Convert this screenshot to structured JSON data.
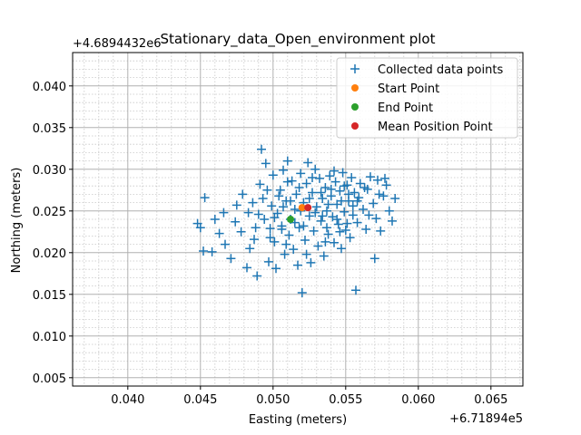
{
  "chart_data": {
    "type": "scatter",
    "title": "Stationary_data_Open_environment plot",
    "xlabel": "Easting (meters)",
    "ylabel": "Northing (meters)",
    "x_offset_label": "+6.71894e5",
    "y_offset_label": "+4.6894432e6",
    "xlim": [
      0.0362,
      0.0672
    ],
    "ylim": [
      0.004,
      0.044
    ],
    "x_ticks": [
      0.04,
      0.045,
      0.05,
      0.055,
      0.06,
      0.065
    ],
    "x_tick_labels": [
      "0.040",
      "0.045",
      "0.050",
      "0.055",
      "0.060",
      "0.065"
    ],
    "y_ticks": [
      0.005,
      0.01,
      0.015,
      0.02,
      0.025,
      0.03,
      0.035,
      0.04
    ],
    "y_tick_labels": [
      "0.005",
      "0.010",
      "0.015",
      "0.020",
      "0.025",
      "0.030",
      "0.035",
      "0.040"
    ],
    "grid": "major-and-minor",
    "legend_position": "top-right",
    "colors": {
      "collected": "#1f77b4",
      "start": "#ff7f0e",
      "end": "#2ca02c",
      "mean": "#d62728",
      "grid_major": "#b0b0b0",
      "grid_minor": "#c8c8c8"
    },
    "series": [
      {
        "name": "Collected data points",
        "marker": "plus",
        "points": [
          [
            0.0453,
            0.0266
          ],
          [
            0.0448,
            0.0235
          ],
          [
            0.045,
            0.023
          ],
          [
            0.0452,
            0.0202
          ],
          [
            0.046,
            0.024
          ],
          [
            0.0463,
            0.0223
          ],
          [
            0.0458,
            0.0201
          ],
          [
            0.0466,
            0.0248
          ],
          [
            0.0467,
            0.021
          ],
          [
            0.0471,
            0.0193
          ],
          [
            0.0474,
            0.0237
          ],
          [
            0.0475,
            0.0257
          ],
          [
            0.0479,
            0.027
          ],
          [
            0.0482,
            0.0182
          ],
          [
            0.0484,
            0.0205
          ],
          [
            0.0487,
            0.0216
          ],
          [
            0.0489,
            0.0172
          ],
          [
            0.049,
            0.0246
          ],
          [
            0.0491,
            0.0282
          ],
          [
            0.0492,
            0.0324
          ],
          [
            0.0493,
            0.0265
          ],
          [
            0.0495,
            0.0307
          ],
          [
            0.0497,
            0.0189
          ],
          [
            0.0498,
            0.0229
          ],
          [
            0.0499,
            0.0256
          ],
          [
            0.05,
            0.0293
          ],
          [
            0.0501,
            0.0213
          ],
          [
            0.0502,
            0.0181
          ],
          [
            0.0503,
            0.0247
          ],
          [
            0.0505,
            0.0275
          ],
          [
            0.0506,
            0.0232
          ],
          [
            0.0507,
            0.0299
          ],
          [
            0.0508,
            0.0198
          ],
          [
            0.0509,
            0.0262
          ],
          [
            0.051,
            0.031
          ],
          [
            0.0511,
            0.0221
          ],
          [
            0.0512,
            0.024
          ],
          [
            0.0513,
            0.0286
          ],
          [
            0.0514,
            0.0204
          ],
          [
            0.0515,
            0.0252
          ],
          [
            0.0516,
            0.027
          ],
          [
            0.0517,
            0.0185
          ],
          [
            0.0518,
            0.023
          ],
          [
            0.0519,
            0.0295
          ],
          [
            0.052,
            0.0152
          ],
          [
            0.0521,
            0.026
          ],
          [
            0.0522,
            0.0215
          ],
          [
            0.0523,
            0.0283
          ],
          [
            0.0524,
            0.0308
          ],
          [
            0.0525,
            0.0244
          ],
          [
            0.0526,
            0.0188
          ],
          [
            0.0527,
            0.0272
          ],
          [
            0.0528,
            0.0226
          ],
          [
            0.0529,
            0.03
          ],
          [
            0.053,
            0.0255
          ],
          [
            0.0531,
            0.0208
          ],
          [
            0.0532,
            0.0289
          ],
          [
            0.0533,
            0.0238
          ],
          [
            0.0534,
            0.0265
          ],
          [
            0.0535,
            0.0196
          ],
          [
            0.0536,
            0.0278
          ],
          [
            0.0537,
            0.025
          ],
          [
            0.0538,
            0.0222
          ],
          [
            0.0539,
            0.0292
          ],
          [
            0.054,
            0.0268
          ],
          [
            0.0541,
            0.0243
          ],
          [
            0.0542,
            0.0212
          ],
          [
            0.0543,
            0.0285
          ],
          [
            0.0544,
            0.0258
          ],
          [
            0.0545,
            0.0234
          ],
          [
            0.0546,
            0.0274
          ],
          [
            0.0547,
            0.0205
          ],
          [
            0.0548,
            0.0296
          ],
          [
            0.0549,
            0.0249
          ],
          [
            0.055,
            0.0227
          ],
          [
            0.0551,
            0.0281
          ],
          [
            0.0552,
            0.0262
          ],
          [
            0.0553,
            0.0218
          ],
          [
            0.0554,
            0.029
          ],
          [
            0.0555,
            0.0245
          ],
          [
            0.0556,
            0.0272
          ],
          [
            0.0557,
            0.0155
          ],
          [
            0.0558,
            0.0236
          ],
          [
            0.0559,
            0.0266
          ],
          [
            0.056,
            0.0283
          ],
          [
            0.0562,
            0.0252
          ],
          [
            0.0564,
            0.0228
          ],
          [
            0.0565,
            0.0276
          ],
          [
            0.0567,
            0.0291
          ],
          [
            0.0569,
            0.0259
          ],
          [
            0.057,
            0.0193
          ],
          [
            0.0571,
            0.0241
          ],
          [
            0.0572,
            0.0287
          ],
          [
            0.0574,
            0.0226
          ],
          [
            0.0576,
            0.0268
          ],
          [
            0.0578,
            0.0281
          ],
          [
            0.058,
            0.025
          ],
          [
            0.0582,
            0.0238
          ],
          [
            0.0584,
            0.0265
          ],
          [
            0.0486,
            0.026
          ],
          [
            0.0494,
            0.024
          ],
          [
            0.0504,
            0.0268
          ],
          [
            0.051,
            0.0285
          ],
          [
            0.0518,
            0.0278
          ],
          [
            0.0525,
            0.0265
          ],
          [
            0.0533,
            0.0272
          ],
          [
            0.054,
            0.0276
          ],
          [
            0.0547,
            0.0262
          ],
          [
            0.0552,
            0.027
          ],
          [
            0.0507,
            0.0255
          ],
          [
            0.0515,
            0.0236
          ],
          [
            0.0529,
            0.0248
          ],
          [
            0.0537,
            0.023
          ],
          [
            0.0544,
            0.024
          ],
          [
            0.0498,
            0.0218
          ],
          [
            0.0506,
            0.0228
          ],
          [
            0.0521,
            0.0232
          ],
          [
            0.0538,
            0.0258
          ],
          [
            0.0549,
            0.028
          ],
          [
            0.0478,
            0.0225
          ],
          [
            0.0483,
            0.0248
          ],
          [
            0.0496,
            0.0275
          ],
          [
            0.0512,
            0.0262
          ],
          [
            0.0527,
            0.029
          ],
          [
            0.0542,
            0.0298
          ],
          [
            0.0558,
            0.0262
          ],
          [
            0.0566,
            0.0245
          ],
          [
            0.0573,
            0.027
          ],
          [
            0.0501,
            0.0242
          ],
          [
            0.0519,
            0.025
          ],
          [
            0.0534,
            0.0244
          ],
          [
            0.0551,
            0.0235
          ],
          [
            0.0563,
            0.0278
          ],
          [
            0.0488,
            0.023
          ],
          [
            0.0509,
            0.021
          ],
          [
            0.0523,
            0.0198
          ],
          [
            0.0536,
            0.0213
          ],
          [
            0.0546,
            0.0225
          ],
          [
            0.0555,
            0.0256
          ],
          [
            0.0577,
            0.0289
          ]
        ]
      },
      {
        "name": "Start Point",
        "marker": "circle",
        "points": [
          [
            0.052,
            0.0254
          ]
        ]
      },
      {
        "name": "End Point",
        "marker": "circle",
        "points": [
          [
            0.0512,
            0.024
          ]
        ]
      },
      {
        "name": "Mean Position Point",
        "marker": "circle",
        "points": [
          [
            0.0524,
            0.0254
          ]
        ]
      }
    ]
  }
}
